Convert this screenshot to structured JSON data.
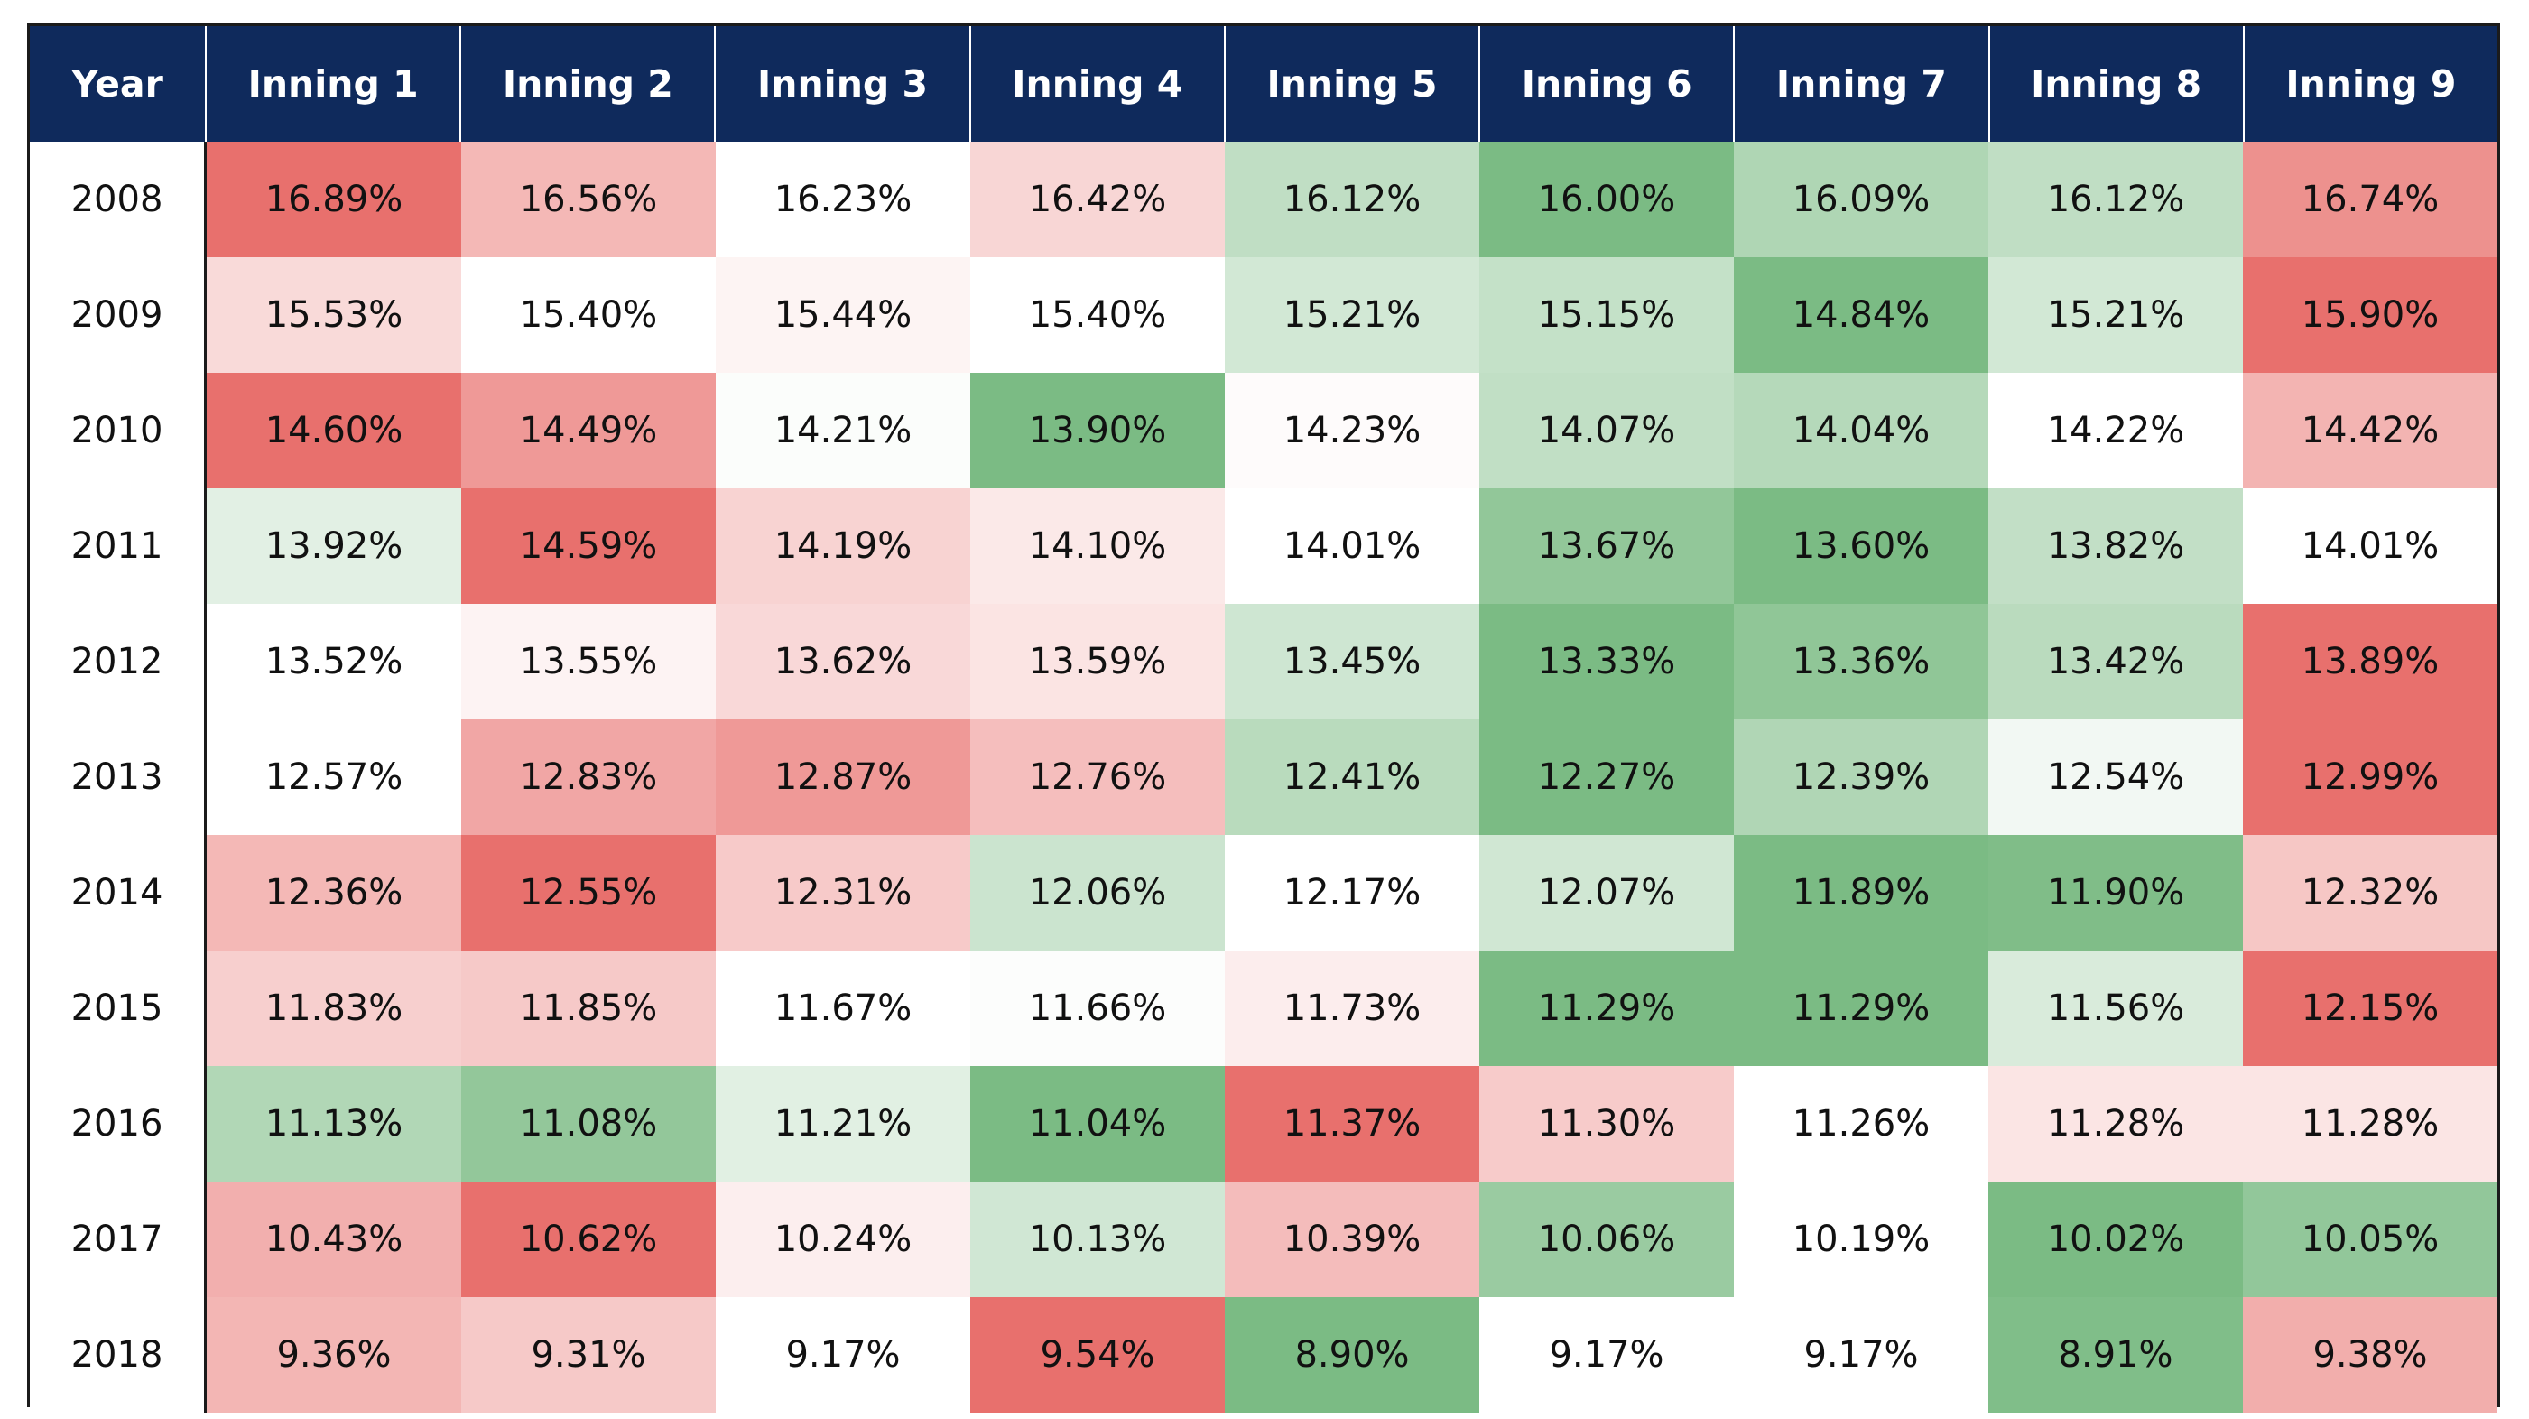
{
  "chart_data": {
    "type": "heatmap",
    "columns": [
      "Inning 1",
      "Inning 2",
      "Inning 3",
      "Inning 4",
      "Inning 5",
      "Inning 6",
      "Inning 7",
      "Inning 8",
      "Inning 9"
    ],
    "year_header": "Year",
    "rows": [
      {
        "year": "2008",
        "values": [
          "16.89%",
          "16.56%",
          "16.23%",
          "16.42%",
          "16.12%",
          "16.00%",
          "16.09%",
          "16.12%",
          "16.74%"
        ]
      },
      {
        "year": "2009",
        "values": [
          "15.53%",
          "15.40%",
          "15.44%",
          "15.40%",
          "15.21%",
          "15.15%",
          "14.84%",
          "15.21%",
          "15.90%"
        ]
      },
      {
        "year": "2010",
        "values": [
          "14.60%",
          "14.49%",
          "14.21%",
          "13.90%",
          "14.23%",
          "14.07%",
          "14.04%",
          "14.22%",
          "14.42%"
        ]
      },
      {
        "year": "2011",
        "values": [
          "13.92%",
          "14.59%",
          "14.19%",
          "14.10%",
          "14.01%",
          "13.67%",
          "13.60%",
          "13.82%",
          "14.01%"
        ]
      },
      {
        "year": "2012",
        "values": [
          "13.52%",
          "13.55%",
          "13.62%",
          "13.59%",
          "13.45%",
          "13.33%",
          "13.36%",
          "13.42%",
          "13.89%"
        ]
      },
      {
        "year": "2013",
        "values": [
          "12.57%",
          "12.83%",
          "12.87%",
          "12.76%",
          "12.41%",
          "12.27%",
          "12.39%",
          "12.54%",
          "12.99%"
        ]
      },
      {
        "year": "2014",
        "values": [
          "12.36%",
          "12.55%",
          "12.31%",
          "12.06%",
          "12.17%",
          "12.07%",
          "11.89%",
          "11.90%",
          "12.32%"
        ]
      },
      {
        "year": "2015",
        "values": [
          "11.83%",
          "11.85%",
          "11.67%",
          "11.66%",
          "11.73%",
          "11.29%",
          "11.29%",
          "11.56%",
          "12.15%"
        ]
      },
      {
        "year": "2016",
        "values": [
          "11.13%",
          "11.08%",
          "11.21%",
          "11.04%",
          "11.37%",
          "11.30%",
          "11.26%",
          "11.28%",
          "11.28%"
        ]
      },
      {
        "year": "2017",
        "values": [
          "10.43%",
          "10.62%",
          "10.24%",
          "10.13%",
          "10.39%",
          "10.06%",
          "10.19%",
          "10.02%",
          "10.05%"
        ]
      },
      {
        "year": "2018",
        "values": [
          "9.36%",
          "9.31%",
          "9.17%",
          "9.54%",
          "8.90%",
          "9.17%",
          "9.17%",
          "8.91%",
          "9.38%"
        ]
      }
    ],
    "color_scale": {
      "low": "#7bbb84",
      "mid": "#ffffff",
      "high": "#e8706d",
      "scope": "per-row"
    },
    "header_bg": "#0f2a5c"
  }
}
